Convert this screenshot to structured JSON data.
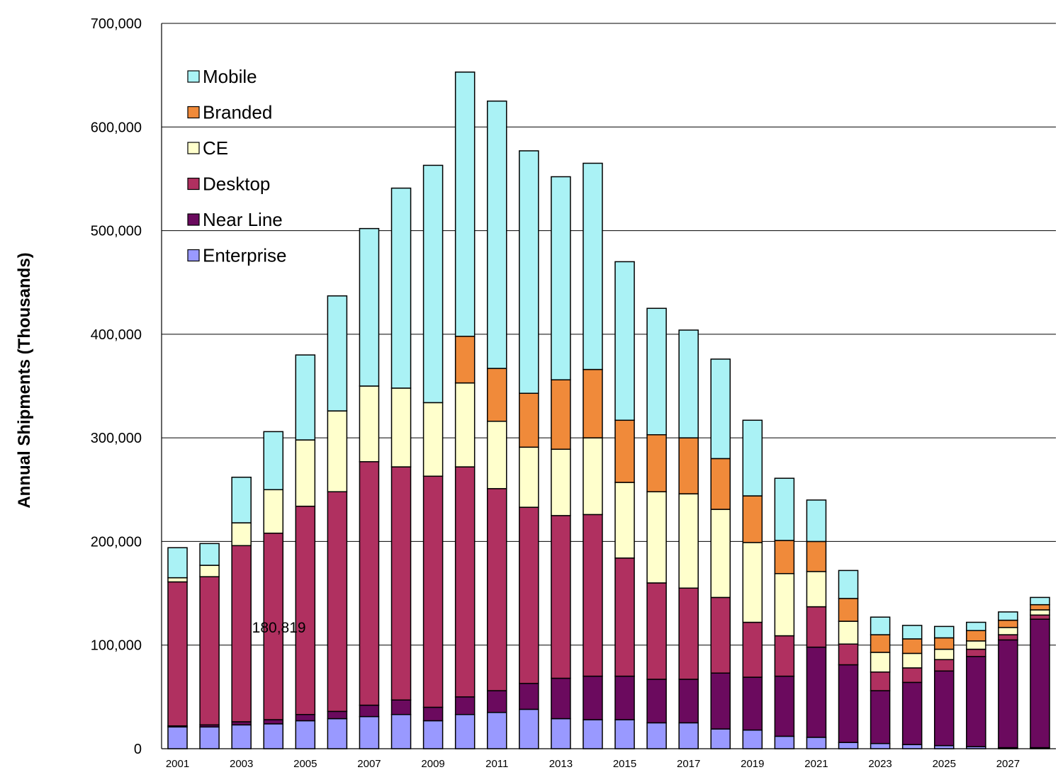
{
  "chart_data": {
    "type": "bar",
    "stacked": true,
    "ylabel": "Annual Shipments (Thousands)",
    "xlabel": "",
    "ylim": [
      0,
      700000
    ],
    "y_ticks": [
      0,
      100000,
      200000,
      300000,
      400000,
      500000,
      600000,
      700000
    ],
    "y_tick_labels": [
      "0",
      "100,000",
      "200,000",
      "300,000",
      "400,000",
      "500,000",
      "600,000",
      "700,000"
    ],
    "grid": "horizontal",
    "legend_position": "top-left",
    "categories": [
      "2001",
      "2002",
      "2003",
      "2004",
      "2005",
      "2006",
      "2007",
      "2008",
      "2009",
      "2010",
      "2011",
      "2012",
      "2013",
      "2014",
      "2015",
      "2016",
      "2017",
      "2018",
      "2019",
      "2020",
      "2021",
      "2022",
      "2023",
      "2024",
      "2025",
      "2026",
      "2027",
      "2028"
    ],
    "x_tick_labels": [
      "2001",
      "",
      "2003",
      "",
      "2005",
      "",
      "2007",
      "",
      "2009",
      "",
      "2011",
      "",
      "2013",
      "",
      "2015",
      "",
      "2017",
      "",
      "2019",
      "",
      "2021",
      "",
      "2023",
      "",
      "2025",
      "",
      "2027",
      ""
    ],
    "series": [
      {
        "name": "Enterprise",
        "color": "#9999ff",
        "values": [
          21000,
          21000,
          23000,
          24000,
          27000,
          29000,
          31000,
          33000,
          27000,
          33000,
          35000,
          38000,
          29000,
          28000,
          28000,
          25000,
          25000,
          19000,
          18000,
          12000,
          11000,
          6000,
          5000,
          4000,
          3000,
          2000,
          1000,
          1000
        ]
      },
      {
        "name": "Near Line",
        "color": "#6b0a5e",
        "values": [
          1000,
          2000,
          3000,
          4000,
          6000,
          7000,
          11000,
          14000,
          13000,
          17000,
          21000,
          25000,
          39000,
          42000,
          42000,
          42000,
          42000,
          54000,
          51000,
          58000,
          87000,
          75000,
          51000,
          60000,
          72000,
          87000,
          104000,
          124000
        ]
      },
      {
        "name": "Desktop",
        "color": "#b03060",
        "values": [
          139000,
          143000,
          170000,
          180000,
          201000,
          212000,
          235000,
          225000,
          223000,
          222000,
          195000,
          170000,
          157000,
          156000,
          114000,
          93000,
          88000,
          73000,
          53000,
          39000,
          39000,
          20000,
          18000,
          14000,
          11000,
          7000,
          5000,
          4000
        ]
      },
      {
        "name": "CE",
        "color": "#ffffcc",
        "values": [
          4000,
          11000,
          22000,
          42000,
          64000,
          78000,
          73000,
          76000,
          71000,
          81000,
          65000,
          58000,
          64000,
          74000,
          73000,
          88000,
          91000,
          85000,
          77000,
          60000,
          34000,
          22000,
          19000,
          14000,
          10000,
          8000,
          7000,
          5000
        ]
      },
      {
        "name": "Branded",
        "color": "#f08a3a",
        "values": [
          0,
          0,
          0,
          0,
          0,
          0,
          0,
          0,
          0,
          45000,
          51000,
          52000,
          67000,
          66000,
          60000,
          55000,
          54000,
          49000,
          45000,
          32000,
          29000,
          22000,
          17000,
          14000,
          11000,
          10000,
          7000,
          5000
        ]
      },
      {
        "name": "Mobile",
        "color": "#aaf2f5",
        "values": [
          29000,
          21000,
          44000,
          56000,
          82000,
          111000,
          152000,
          193000,
          229000,
          255000,
          258000,
          234000,
          196000,
          199000,
          153000,
          122000,
          104000,
          96000,
          73000,
          60000,
          40000,
          27000,
          17000,
          13000,
          11000,
          8000,
          8000,
          7000
        ]
      }
    ],
    "annotations": [
      {
        "text": "180,819",
        "x": "2003",
        "y": 117000
      }
    ]
  }
}
